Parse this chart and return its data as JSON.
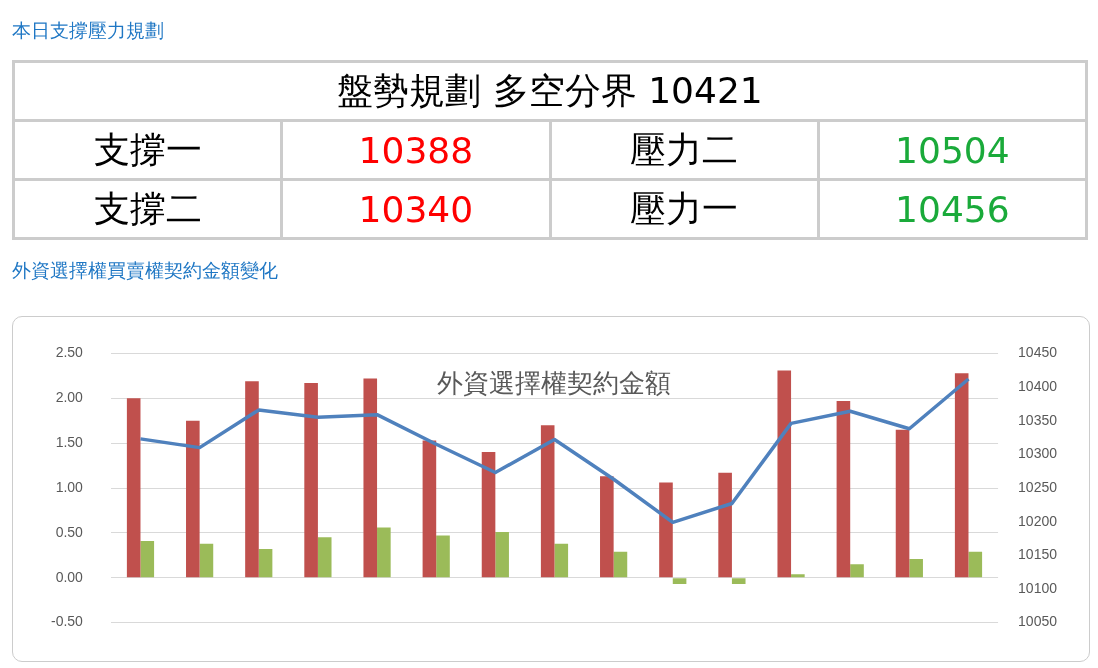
{
  "chart_data": [
    {
      "type": "other",
      "title": "本日支撐壓力規劃",
      "annotations": [
        "盤勢規劃 多空分界 10421",
        "支撐一",
        "10388",
        "壓力二",
        "10504",
        "支撐二",
        "10340",
        "壓力一",
        "10456"
      ]
    },
    {
      "type": "bar",
      "title": "外資選擇權契約金額",
      "subtitle": "外資選擇權買賣權契約金額變化",
      "categories": [
        null,
        null,
        null,
        null,
        null,
        null,
        null,
        null,
        null,
        null,
        null,
        null,
        null,
        null,
        null
      ],
      "series": [
        {
          "type": "bar",
          "color": "#c0504d",
          "values": [
            2.0,
            1.75,
            2.19,
            2.17,
            2.22,
            1.53,
            1.4,
            1.7,
            1.13,
            1.06,
            1.17,
            2.31,
            1.97,
            1.65,
            2.28
          ]
        },
        {
          "type": "bar",
          "color": "#9bbb59",
          "values": [
            0.41,
            0.38,
            0.32,
            0.45,
            0.56,
            0.47,
            0.51,
            0.38,
            0.29,
            -0.07,
            -0.07,
            0.04,
            0.15,
            0.21,
            0.29
          ]
        },
        {
          "type": "line",
          "axis": "y2",
          "color": "#4f81bd",
          "values": [
            10323,
            10310,
            10366,
            10355,
            10359,
            10315,
            10273,
            10322,
            10263,
            10199,
            10227,
            10346,
            10364,
            10338,
            10412
          ]
        }
      ],
      "ylim": [
        -0.5,
        2.5
      ],
      "yticks": [
        {
          "value": -0.5,
          "label": "-0.50"
        },
        {
          "value": 0,
          "label": "0.00"
        },
        {
          "value": 0.5,
          "label": "0.50"
        },
        {
          "value": 1,
          "label": "1.00"
        },
        {
          "value": 1.5,
          "label": "1.50"
        },
        {
          "value": 2,
          "label": "2.00"
        },
        {
          "value": 2.5,
          "label": "2.50"
        }
      ],
      "y2lim": [
        10050,
        10450
      ],
      "y2ticks": [
        10050,
        10100,
        10150,
        10200,
        10250,
        10300,
        10350,
        10400,
        10450
      ],
      "grid": "y",
      "legend": false,
      "marker": "none",
      "line_style": "solid"
    }
  ]
}
